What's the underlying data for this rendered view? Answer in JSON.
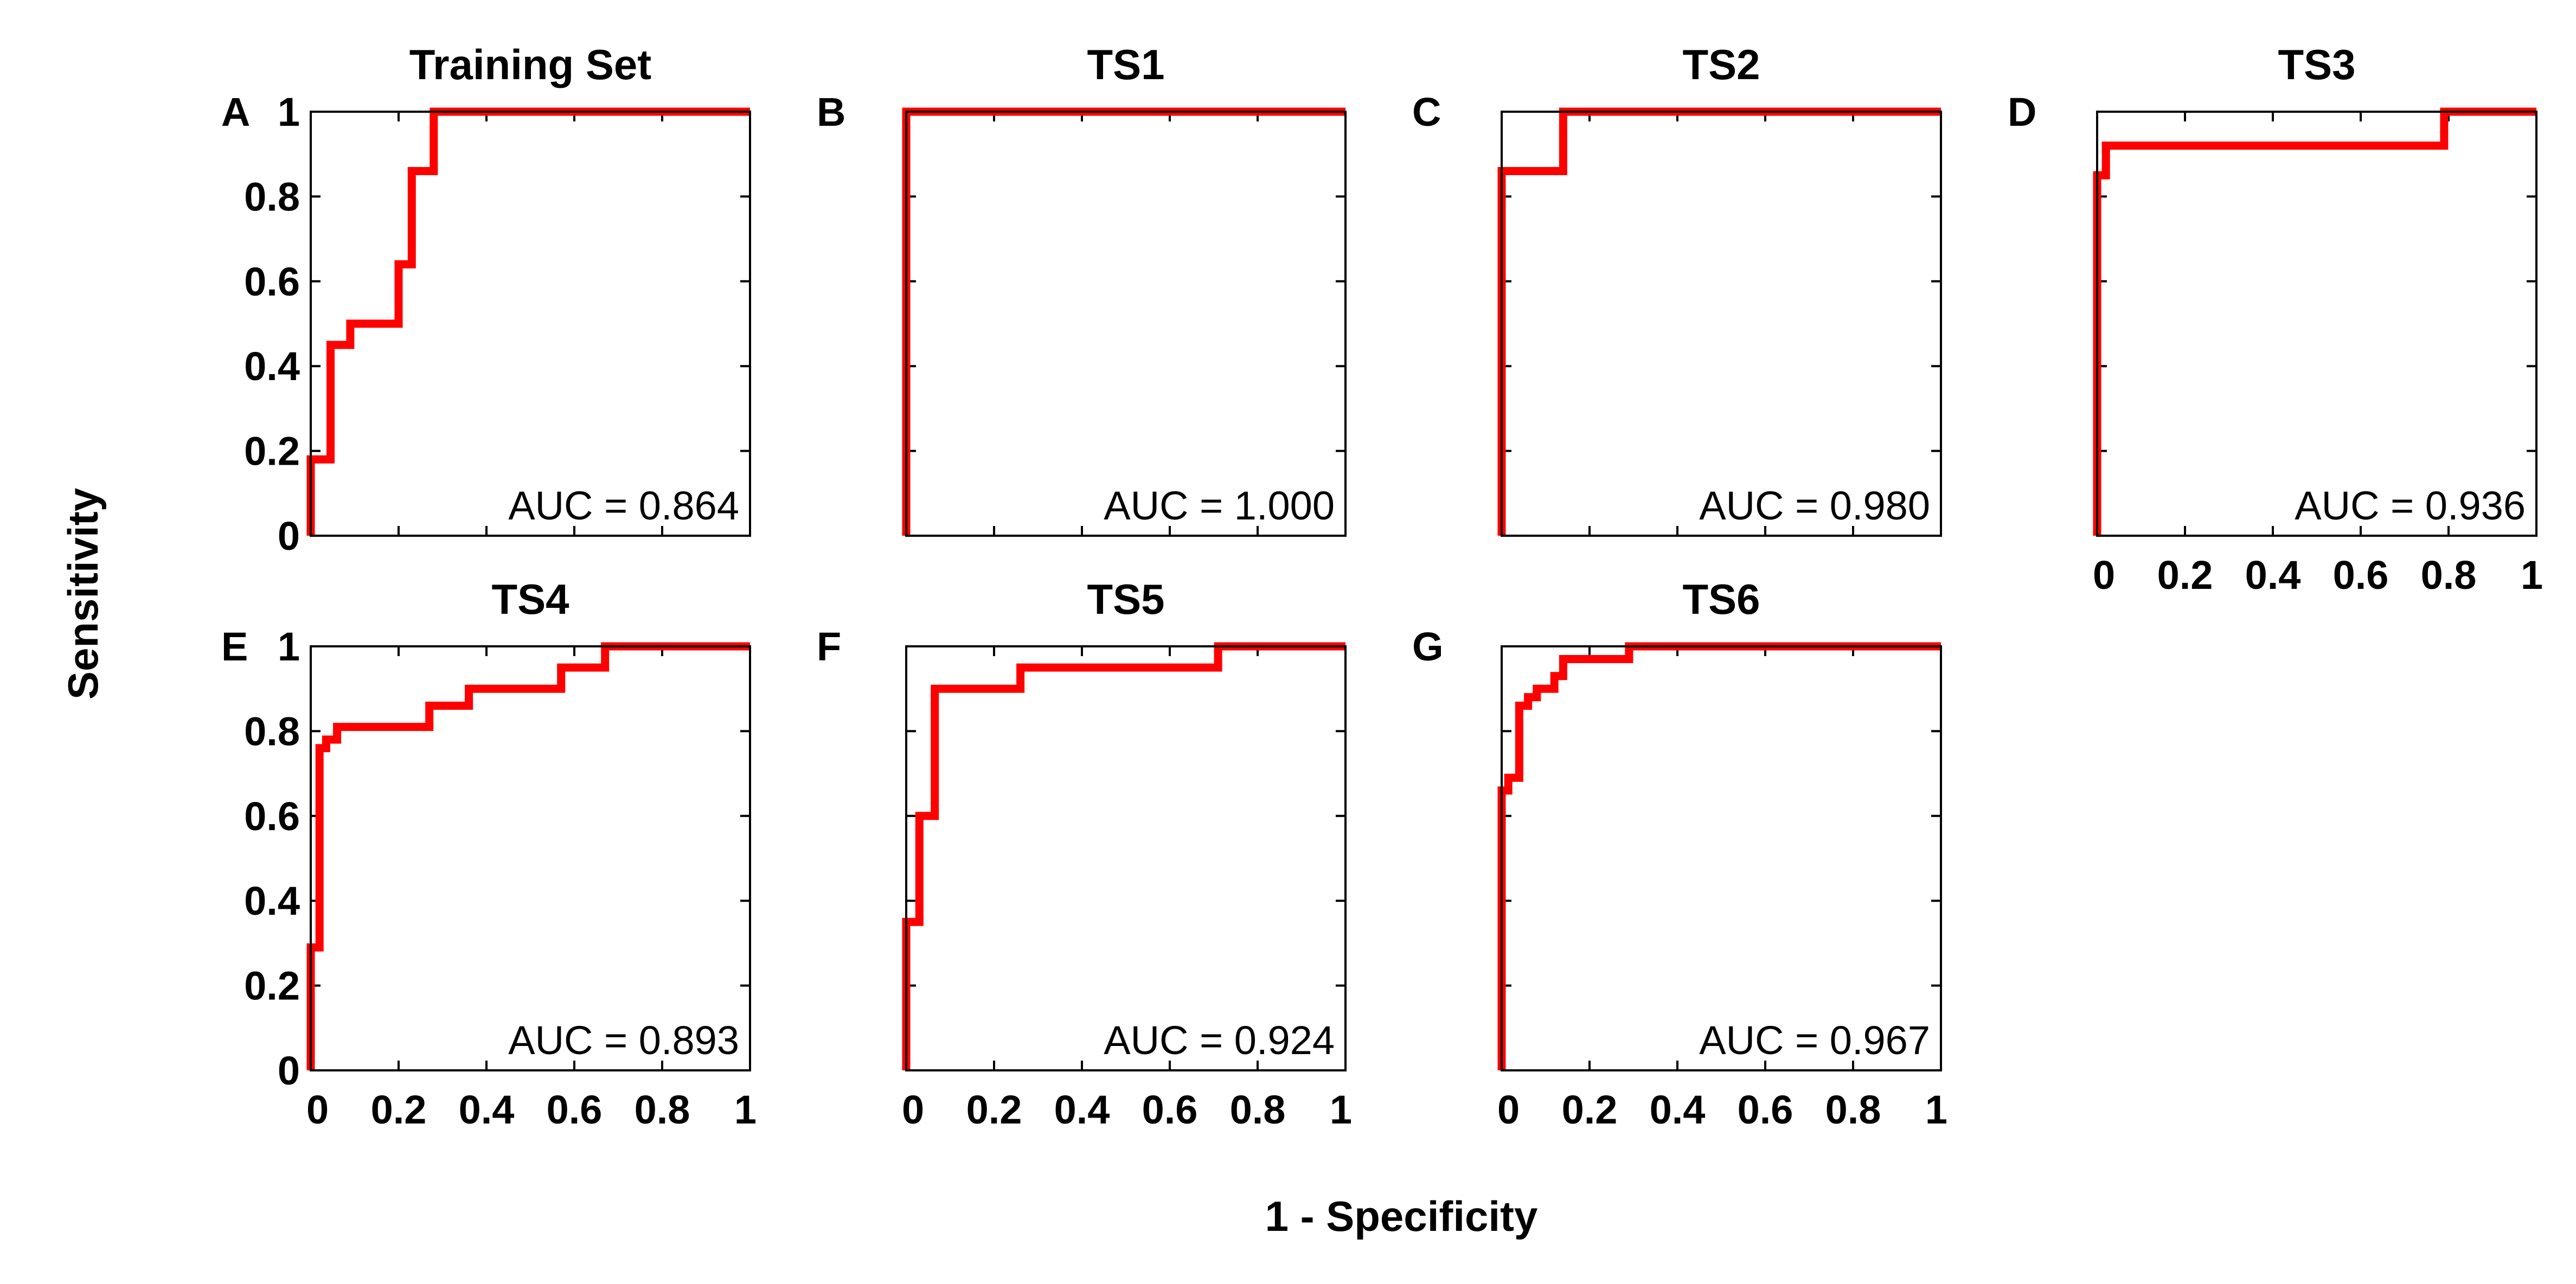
{
  "figure": {
    "xlabel": "1 - Specificity",
    "ylabel": "Sensitivity",
    "line_color": "#ff0000"
  },
  "chart_data": [
    {
      "type": "line",
      "panel": "A",
      "title": "Training Set",
      "annotation": "AUC = 0.864",
      "xlim": [
        0,
        1
      ],
      "ylim": [
        0,
        1
      ],
      "xticks": [
        "0",
        "0.2",
        "0.4",
        "0.6",
        "0.8",
        "1"
      ],
      "yticks": [
        "0",
        "0.2",
        "0.4",
        "0.6",
        "0.8",
        "1"
      ],
      "show_xtick_labels": false,
      "show_ytick_labels": true,
      "series": [
        {
          "x": [
            0,
            0,
            0.045,
            0.045,
            0.09,
            0.09,
            0.2,
            0.2,
            0.23,
            0.23,
            0.28,
            0.28,
            1
          ],
          "y": [
            0,
            0.18,
            0.18,
            0.45,
            0.45,
            0.5,
            0.5,
            0.64,
            0.64,
            0.86,
            0.86,
            1,
            1
          ]
        }
      ]
    },
    {
      "type": "line",
      "panel": "B",
      "title": "TS1",
      "annotation": "AUC = 1.000",
      "xlim": [
        0,
        1
      ],
      "ylim": [
        0,
        1
      ],
      "xticks": [
        "0",
        "0.2",
        "0.4",
        "0.6",
        "0.8",
        "1"
      ],
      "yticks": [
        "0",
        "0.2",
        "0.4",
        "0.6",
        "0.8",
        "1"
      ],
      "show_xtick_labels": false,
      "show_ytick_labels": false,
      "series": [
        {
          "x": [
            0,
            0,
            1
          ],
          "y": [
            0,
            1,
            1
          ]
        }
      ]
    },
    {
      "type": "line",
      "panel": "C",
      "title": "TS2",
      "annotation": "AUC = 0.980",
      "xlim": [
        0,
        1
      ],
      "ylim": [
        0,
        1
      ],
      "xticks": [
        "0",
        "0.2",
        "0.4",
        "0.6",
        "0.8",
        "1"
      ],
      "yticks": [
        "0",
        "0.2",
        "0.4",
        "0.6",
        "0.8",
        "1"
      ],
      "show_xtick_labels": false,
      "show_ytick_labels": false,
      "series": [
        {
          "x": [
            0,
            0,
            0.14,
            0.14,
            1
          ],
          "y": [
            0,
            0.86,
            0.86,
            1,
            1
          ]
        }
      ]
    },
    {
      "type": "line",
      "panel": "D",
      "title": "TS3",
      "annotation": "AUC = 0.936",
      "xlim": [
        0,
        1
      ],
      "ylim": [
        0,
        1
      ],
      "xticks": [
        "0",
        "0.2",
        "0.4",
        "0.6",
        "0.8",
        "1"
      ],
      "yticks": [
        "0",
        "0.2",
        "0.4",
        "0.6",
        "0.8",
        "1"
      ],
      "show_xtick_labels": true,
      "show_ytick_labels": false,
      "series": [
        {
          "x": [
            0,
            0,
            0.02,
            0.02,
            0.79,
            0.79,
            1
          ],
          "y": [
            0,
            0.85,
            0.85,
            0.92,
            0.92,
            1,
            1
          ]
        }
      ]
    },
    {
      "type": "line",
      "panel": "E",
      "title": "TS4",
      "annotation": "AUC = 0.893",
      "xlim": [
        0,
        1
      ],
      "ylim": [
        0,
        1
      ],
      "xticks": [
        "0",
        "0.2",
        "0.4",
        "0.6",
        "0.8",
        "1"
      ],
      "yticks": [
        "0",
        "0.2",
        "0.4",
        "0.6",
        "0.8",
        "1"
      ],
      "show_xtick_labels": true,
      "show_ytick_labels": true,
      "series": [
        {
          "x": [
            0,
            0,
            0.02,
            0.02,
            0.035,
            0.035,
            0.06,
            0.06,
            0.27,
            0.27,
            0.36,
            0.36,
            0.57,
            0.57,
            0.67,
            0.67,
            1
          ],
          "y": [
            0,
            0.29,
            0.29,
            0.76,
            0.76,
            0.78,
            0.78,
            0.81,
            0.81,
            0.86,
            0.86,
            0.9,
            0.9,
            0.95,
            0.95,
            1,
            1
          ]
        }
      ]
    },
    {
      "type": "line",
      "panel": "F",
      "title": "TS5",
      "annotation": "AUC = 0.924",
      "xlim": [
        0,
        1
      ],
      "ylim": [
        0,
        1
      ],
      "xticks": [
        "0",
        "0.2",
        "0.4",
        "0.6",
        "0.8",
        "1"
      ],
      "yticks": [
        "0",
        "0.2",
        "0.4",
        "0.6",
        "0.8",
        "1"
      ],
      "show_xtick_labels": true,
      "show_ytick_labels": false,
      "series": [
        {
          "x": [
            0,
            0,
            0.03,
            0.03,
            0.065,
            0.065,
            0.26,
            0.26,
            0.71,
            0.71,
            1
          ],
          "y": [
            0,
            0.35,
            0.35,
            0.6,
            0.6,
            0.9,
            0.9,
            0.95,
            0.95,
            1,
            1
          ]
        }
      ]
    },
    {
      "type": "line",
      "panel": "G",
      "title": "TS6",
      "annotation": "AUC = 0.967",
      "xlim": [
        0,
        1
      ],
      "ylim": [
        0,
        1
      ],
      "xticks": [
        "0",
        "0.2",
        "0.4",
        "0.6",
        "0.8",
        "1"
      ],
      "yticks": [
        "0",
        "0.2",
        "0.4",
        "0.6",
        "0.8",
        "1"
      ],
      "show_xtick_labels": true,
      "show_ytick_labels": false,
      "series": [
        {
          "x": [
            0,
            0,
            0.015,
            0.015,
            0.04,
            0.04,
            0.06,
            0.06,
            0.08,
            0.08,
            0.12,
            0.12,
            0.14,
            0.14,
            0.29,
            0.29,
            1
          ],
          "y": [
            0,
            0.66,
            0.66,
            0.69,
            0.69,
            0.86,
            0.86,
            0.88,
            0.88,
            0.9,
            0.9,
            0.93,
            0.93,
            0.97,
            0.97,
            1,
            1
          ]
        }
      ]
    }
  ]
}
